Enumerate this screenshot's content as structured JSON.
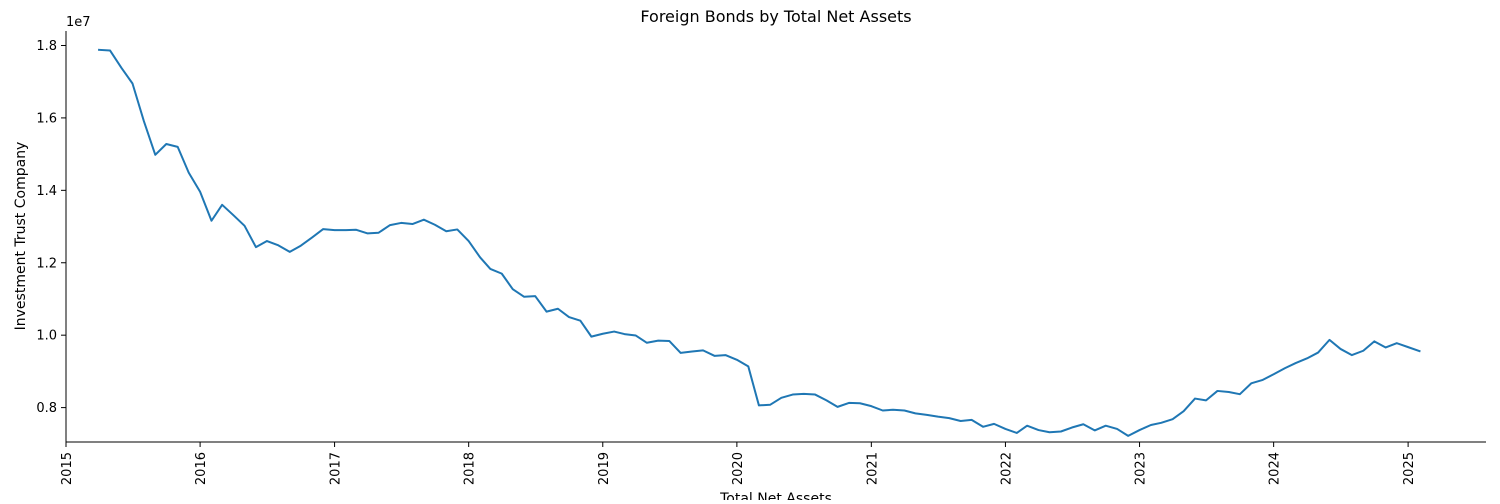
{
  "chart_data": {
    "type": "line",
    "title": "Foreign Bonds by Total Net Assets",
    "xlabel": "Total Net Assets",
    "ylabel": "Investment Trust Company",
    "y_offset_label": "1e7",
    "xlim": [
      "2015-01-01",
      "2025-08-01"
    ],
    "ylim": [
      7050000,
      18400000
    ],
    "grid": false,
    "x_ticks": [
      "2015-01-01",
      "2016-01-01",
      "2017-01-01",
      "2018-01-01",
      "2019-01-01",
      "2020-01-01",
      "2021-01-01",
      "2022-01-01",
      "2023-01-01",
      "2024-01-01",
      "2025-01-01"
    ],
    "x_tick_labels": [
      "2015",
      "2016",
      "2017",
      "2018",
      "2019",
      "2020",
      "2021",
      "2022",
      "2023",
      "2024",
      "2025"
    ],
    "y_ticks": [
      8000000,
      10000000,
      12000000,
      14000000,
      16000000,
      18000000
    ],
    "y_tick_labels": [
      "0.8",
      "1.0",
      "1.2",
      "1.4",
      "1.6",
      "1.8"
    ],
    "series": [
      {
        "color": "#1f77b4",
        "points": [
          [
            "2015-04",
            17880000
          ],
          [
            "2015-05",
            17860000
          ],
          [
            "2015-06",
            17380000
          ],
          [
            "2015-07",
            16950000
          ],
          [
            "2015-08",
            15910000
          ],
          [
            "2015-09",
            14980000
          ],
          [
            "2015-10",
            15280000
          ],
          [
            "2015-11",
            15200000
          ],
          [
            "2015-12",
            14490000
          ],
          [
            "2016-01",
            13960000
          ],
          [
            "2016-02",
            13160000
          ],
          [
            "2016-03",
            13600000
          ],
          [
            "2016-04",
            13310000
          ],
          [
            "2016-05",
            13020000
          ],
          [
            "2016-06",
            12430000
          ],
          [
            "2016-07",
            12600000
          ],
          [
            "2016-08",
            12480000
          ],
          [
            "2016-09",
            12300000
          ],
          [
            "2016-10",
            12470000
          ],
          [
            "2016-11",
            12700000
          ],
          [
            "2016-12",
            12930000
          ],
          [
            "2017-01",
            12900000
          ],
          [
            "2017-02",
            12900000
          ],
          [
            "2017-03",
            12910000
          ],
          [
            "2017-04",
            12810000
          ],
          [
            "2017-05",
            12830000
          ],
          [
            "2017-06",
            13040000
          ],
          [
            "2017-07",
            13100000
          ],
          [
            "2017-08",
            13070000
          ],
          [
            "2017-09",
            13190000
          ],
          [
            "2017-10",
            13050000
          ],
          [
            "2017-11",
            12870000
          ],
          [
            "2017-12",
            12920000
          ],
          [
            "2018-01",
            12600000
          ],
          [
            "2018-02",
            12150000
          ],
          [
            "2018-03",
            11830000
          ],
          [
            "2018-04",
            11700000
          ],
          [
            "2018-05",
            11270000
          ],
          [
            "2018-06",
            11060000
          ],
          [
            "2018-07",
            11080000
          ],
          [
            "2018-08",
            10650000
          ],
          [
            "2018-09",
            10730000
          ],
          [
            "2018-10",
            10500000
          ],
          [
            "2018-11",
            10400000
          ],
          [
            "2018-12",
            9960000
          ],
          [
            "2019-01",
            10040000
          ],
          [
            "2019-02",
            10100000
          ],
          [
            "2019-03",
            10030000
          ],
          [
            "2019-04",
            9990000
          ],
          [
            "2019-05",
            9790000
          ],
          [
            "2019-06",
            9850000
          ],
          [
            "2019-07",
            9840000
          ],
          [
            "2019-08",
            9510000
          ],
          [
            "2019-09",
            9550000
          ],
          [
            "2019-10",
            9580000
          ],
          [
            "2019-11",
            9430000
          ],
          [
            "2019-12",
            9450000
          ],
          [
            "2020-01",
            9320000
          ],
          [
            "2020-02",
            9140000
          ],
          [
            "2020-03",
            8060000
          ],
          [
            "2020-04",
            8080000
          ],
          [
            "2020-05",
            8270000
          ],
          [
            "2020-06",
            8360000
          ],
          [
            "2020-07",
            8380000
          ],
          [
            "2020-08",
            8360000
          ],
          [
            "2020-09",
            8200000
          ],
          [
            "2020-10",
            8020000
          ],
          [
            "2020-11",
            8130000
          ],
          [
            "2020-12",
            8120000
          ],
          [
            "2021-01",
            8040000
          ],
          [
            "2021-02",
            7920000
          ],
          [
            "2021-03",
            7940000
          ],
          [
            "2021-04",
            7920000
          ],
          [
            "2021-05",
            7840000
          ],
          [
            "2021-06",
            7800000
          ],
          [
            "2021-07",
            7750000
          ],
          [
            "2021-08",
            7710000
          ],
          [
            "2021-09",
            7630000
          ],
          [
            "2021-10",
            7660000
          ],
          [
            "2021-11",
            7470000
          ],
          [
            "2021-12",
            7550000
          ],
          [
            "2022-01",
            7410000
          ],
          [
            "2022-02",
            7300000
          ],
          [
            "2022-03",
            7500000
          ],
          [
            "2022-04",
            7380000
          ],
          [
            "2022-05",
            7320000
          ],
          [
            "2022-06",
            7340000
          ],
          [
            "2022-07",
            7450000
          ],
          [
            "2022-08",
            7540000
          ],
          [
            "2022-09",
            7370000
          ],
          [
            "2022-10",
            7500000
          ],
          [
            "2022-11",
            7410000
          ],
          [
            "2022-12",
            7220000
          ],
          [
            "2023-01",
            7380000
          ],
          [
            "2023-02",
            7520000
          ],
          [
            "2023-03",
            7580000
          ],
          [
            "2023-04",
            7680000
          ],
          [
            "2023-05",
            7900000
          ],
          [
            "2023-06",
            8250000
          ],
          [
            "2023-07",
            8200000
          ],
          [
            "2023-08",
            8460000
          ],
          [
            "2023-09",
            8430000
          ],
          [
            "2023-10",
            8370000
          ],
          [
            "2023-11",
            8670000
          ],
          [
            "2023-12",
            8760000
          ],
          [
            "2024-01",
            8920000
          ],
          [
            "2024-02",
            9090000
          ],
          [
            "2024-03",
            9230000
          ],
          [
            "2024-04",
            9360000
          ],
          [
            "2024-05",
            9520000
          ],
          [
            "2024-06",
            9870000
          ],
          [
            "2024-07",
            9620000
          ],
          [
            "2024-08",
            9450000
          ],
          [
            "2024-09",
            9570000
          ],
          [
            "2024-10",
            9830000
          ],
          [
            "2024-11",
            9660000
          ],
          [
            "2024-12",
            9780000
          ],
          [
            "2025-01",
            9670000
          ],
          [
            "2025-02",
            9560000
          ]
        ]
      }
    ]
  }
}
